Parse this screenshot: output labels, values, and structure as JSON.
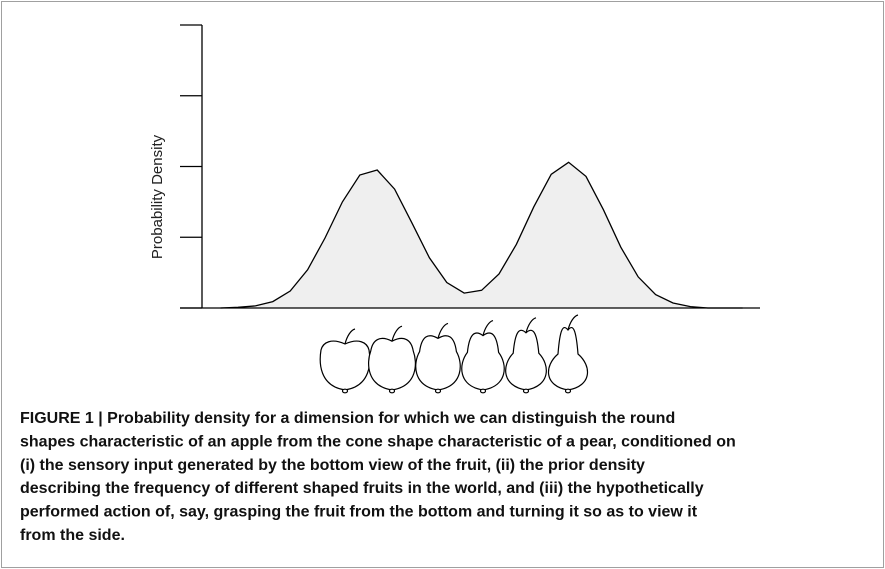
{
  "chart_data": {
    "type": "area",
    "y_label": "Probability Density",
    "x": [
      0.7,
      1.0,
      1.3,
      1.6,
      1.9,
      2.2,
      2.5,
      2.8,
      3.1,
      3.4,
      3.7,
      4.0,
      4.3,
      4.6,
      4.9,
      5.2,
      5.5,
      5.8,
      6.1,
      6.4,
      6.7,
      7.0,
      7.3,
      7.6,
      7.9,
      8.2,
      8.5,
      8.8,
      9.1,
      9.4,
      9.7
    ],
    "values": [
      0.0,
      0.01,
      0.03,
      0.09,
      0.24,
      0.54,
      0.99,
      1.5,
      1.88,
      1.95,
      1.68,
      1.2,
      0.71,
      0.36,
      0.21,
      0.25,
      0.48,
      0.9,
      1.43,
      1.89,
      2.06,
      1.86,
      1.39,
      0.86,
      0.44,
      0.19,
      0.07,
      0.02,
      0.0,
      0.0,
      0.0
    ],
    "color": "#efefef",
    "line_color": "#000000",
    "xlim": [
      0,
      10
    ],
    "ylim": [
      0,
      4
    ],
    "yticks": [
      0,
      1,
      2,
      3,
      4
    ]
  },
  "caption": {
    "lines": [
      "FIGURE 1 | Probability density for a dimension for which we can distinguish the round",
      "shapes characteristic of an apple from the cone shape characteristic of a pear, conditioned on",
      "(i) the sensory input generated by the bottom view of the fruit, (ii) the prior density",
      "describing the frequency of different shaped fruits in the world, and (iii) the hypothetically",
      "performed action of, say, grasping the fruit from the bottom and turning it so as to view it",
      "from the side."
    ]
  }
}
